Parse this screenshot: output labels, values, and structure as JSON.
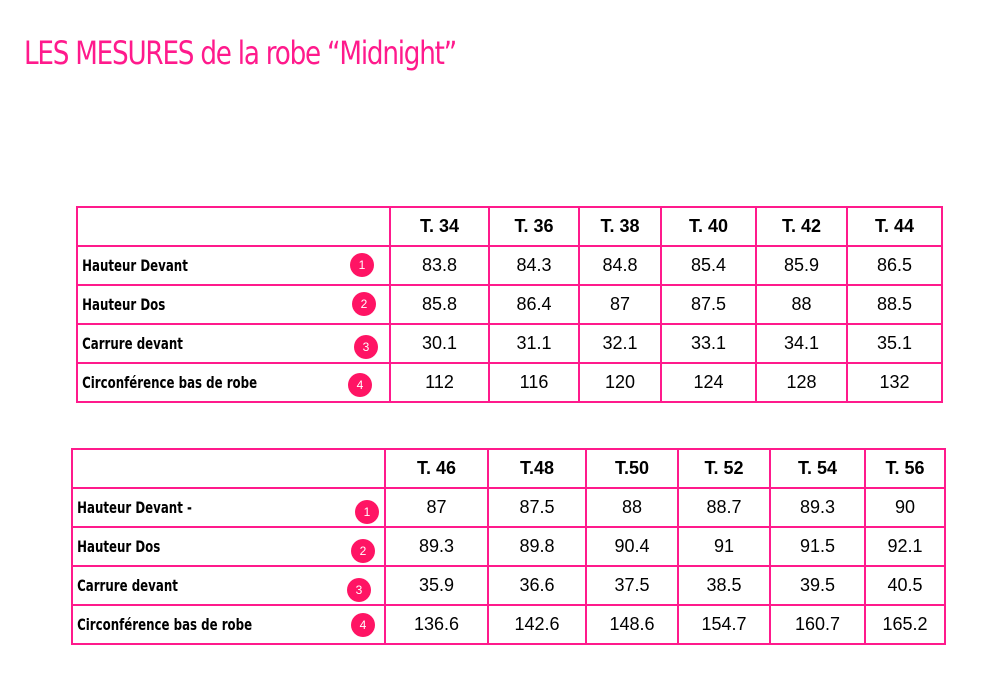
{
  "title": "LES MESURES de la robe “Midnight”",
  "table1": {
    "sizes": [
      "T. 34",
      "T. 36",
      "T. 38",
      "T. 40",
      "T. 42",
      "T. 44"
    ],
    "rows": [
      {
        "label": "Hauteur Devant",
        "num": "1",
        "values": [
          "83.8",
          "84.3",
          "84.8",
          "85.4",
          "85.9",
          "86.5"
        ]
      },
      {
        "label": "Hauteur Dos",
        "num": "2",
        "values": [
          "85.8",
          "86.4",
          "87",
          "87.5",
          "88",
          "88.5"
        ]
      },
      {
        "label": "Carrure devant",
        "num": "3",
        "values": [
          "30.1",
          "31.1",
          "32.1",
          "33.1",
          "34.1",
          "35.1"
        ]
      },
      {
        "label": "Circonférence bas de robe",
        "num": "4",
        "values": [
          "112",
          "116",
          "120",
          "124",
          "128",
          "132"
        ]
      }
    ]
  },
  "table2": {
    "sizes": [
      "T. 46",
      "T.48",
      "T.50",
      "T. 52",
      "T. 54",
      "T. 56"
    ],
    "rows": [
      {
        "label": "Hauteur Devant -",
        "num": "1",
        "values": [
          "87",
          "87.5",
          "88",
          "88.7",
          "89.3",
          "90"
        ]
      },
      {
        "label": "Hauteur Dos",
        "num": "2",
        "values": [
          "89.3",
          "89.8",
          "90.4",
          "91",
          "91.5",
          "92.1"
        ]
      },
      {
        "label": "Carrure devant",
        "num": "3",
        "values": [
          "35.9",
          "36.6",
          "37.5",
          "38.5",
          "39.5",
          "40.5"
        ]
      },
      {
        "label": "Circonférence bas de robe",
        "num": "4",
        "values": [
          "136.6",
          "142.6",
          "148.6",
          "154.7",
          "160.7",
          "165.2"
        ]
      }
    ]
  },
  "colors": {
    "accent": "#ff1a8c",
    "badge": "#ff1464"
  }
}
